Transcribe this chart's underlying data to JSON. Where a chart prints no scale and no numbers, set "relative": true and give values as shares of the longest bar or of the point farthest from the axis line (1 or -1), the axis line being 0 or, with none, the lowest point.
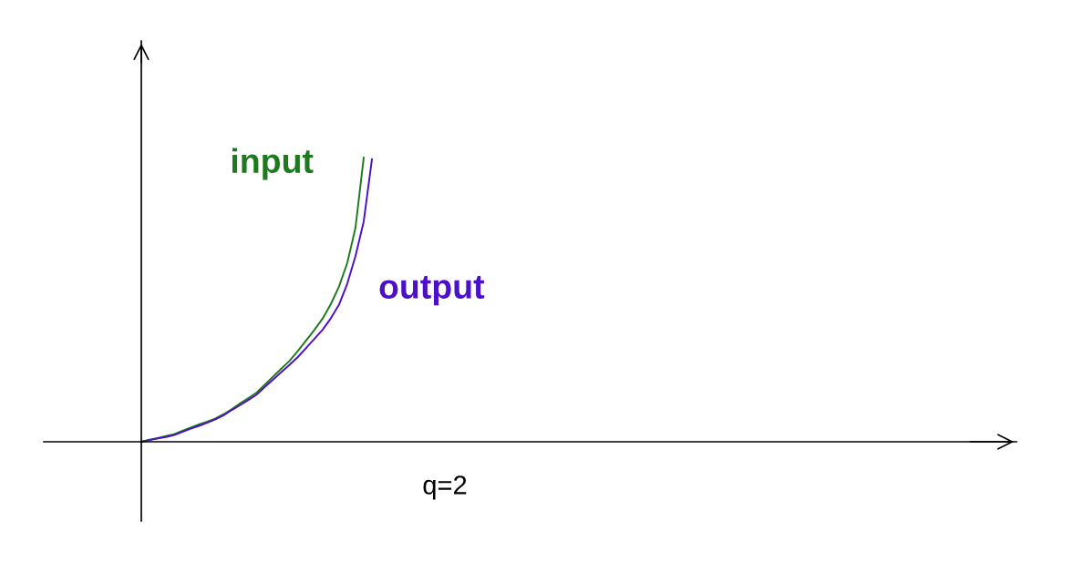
{
  "chart_data": {
    "type": "line",
    "relative": true,
    "marker": "none",
    "line_style": "solid",
    "legend": false,
    "categories": [
      null,
      null,
      null,
      null,
      null,
      null,
      null,
      null,
      null,
      null,
      null,
      null,
      null,
      null,
      null,
      null,
      null,
      null,
      null,
      null,
      null,
      null,
      null,
      null,
      null,
      null,
      null,
      null,
      null
    ],
    "series": [
      {
        "name": "input",
        "color": "#1f7a1f",
        "values": [
          0,
          0.007,
          0.013,
          0.02,
          0.027,
          0.039,
          0.05,
          0.061,
          0.071,
          0.082,
          0.097,
          0.115,
          0.135,
          0.154,
          0.173,
          0.201,
          0.229,
          0.257,
          0.285,
          0.319,
          0.356,
          0.393,
          0.433,
          0.484,
          0.546,
          0.629,
          0.753,
          1,
          null
        ]
      },
      {
        "name": "output",
        "color": "#4b10c8",
        "values": [
          0,
          0.006,
          0.012,
          0.017,
          0.024,
          0.035,
          0.046,
          0.056,
          0.067,
          0.079,
          0.093,
          0.112,
          0.129,
          0.147,
          0.166,
          0.193,
          0.219,
          0.245,
          0.271,
          0.298,
          0.33,
          0.362,
          0.394,
          0.434,
          0.482,
          0.556,
          0.653,
          0.775,
          0.994
        ]
      }
    ],
    "annotations": [
      "q=2"
    ]
  }
}
